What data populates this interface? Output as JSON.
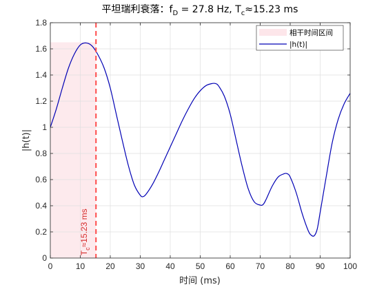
{
  "chart_data": {
    "type": "line",
    "title": {
      "prefix": "平坦瑞利衰落：f",
      "sub1": "D",
      "mid": " = 27.8 Hz,  T",
      "sub2": "c",
      "suffix": "≈15.23 ms"
    },
    "xlabel": "时间 (ms)",
    "ylabel": "|h(t)|",
    "xlim": [
      0,
      100
    ],
    "ylim": [
      0,
      1.8
    ],
    "xticks": [
      0,
      10,
      20,
      30,
      40,
      50,
      60,
      70,
      80,
      90,
      100
    ],
    "yticks": [
      0,
      0.2,
      0.4,
      0.6,
      0.8,
      1.0,
      1.2,
      1.4,
      1.6,
      1.8
    ],
    "xtick_labels": [
      "0",
      "10",
      "20",
      "30",
      "40",
      "50",
      "60",
      "70",
      "80",
      "90",
      "100"
    ],
    "ytick_labels": [
      "0",
      "0.2",
      "0.4",
      "0.6",
      "0.8",
      "1",
      "1.2",
      "1.4",
      "1.6",
      "1.8"
    ],
    "grid": true,
    "legend": {
      "placement": "top-right",
      "entries": [
        {
          "label": "相干时间区间",
          "kind": "patch",
          "color": "#fde6ea"
        },
        {
          "label": "|h(t)|",
          "kind": "line",
          "color": "#0000b4"
        }
      ]
    },
    "coherence_region": {
      "x": [
        0,
        15.23
      ],
      "y": [
        0,
        1.65
      ],
      "color": "#fde6ea"
    },
    "vline": {
      "x": 15.23,
      "color": "#ff4a4a",
      "style": "dashed"
    },
    "annotation": {
      "prefix": "T",
      "sub": "c",
      "rest": "≈15.23 ms",
      "x": 12.2,
      "y": 0.02,
      "color": "#d42a2a"
    },
    "series": [
      {
        "name": "|h(t)|",
        "color": "#0000b4",
        "x": [
          0,
          2,
          4,
          6,
          8,
          10,
          12,
          14,
          16,
          18,
          20,
          22,
          24,
          26,
          28,
          30,
          31,
          32,
          34,
          36,
          38,
          40,
          42,
          44,
          46,
          48,
          50,
          52,
          54,
          55,
          56,
          58,
          60,
          62,
          64,
          66,
          68,
          70,
          71,
          72,
          74,
          76,
          78,
          79,
          80,
          82,
          84,
          86,
          87,
          88,
          89,
          90,
          92,
          94,
          96,
          98,
          100
        ],
        "values": [
          1.0,
          1.14,
          1.3,
          1.45,
          1.56,
          1.63,
          1.645,
          1.62,
          1.55,
          1.45,
          1.3,
          1.1,
          0.9,
          0.71,
          0.56,
          0.48,
          0.47,
          0.49,
          0.56,
          0.65,
          0.75,
          0.85,
          0.95,
          1.05,
          1.14,
          1.22,
          1.28,
          1.32,
          1.335,
          1.335,
          1.32,
          1.24,
          1.1,
          0.9,
          0.7,
          0.53,
          0.43,
          0.405,
          0.41,
          0.45,
          0.55,
          0.62,
          0.645,
          0.645,
          0.62,
          0.5,
          0.34,
          0.21,
          0.175,
          0.17,
          0.22,
          0.35,
          0.62,
          0.88,
          1.06,
          1.18,
          1.26
        ]
      }
    ]
  }
}
